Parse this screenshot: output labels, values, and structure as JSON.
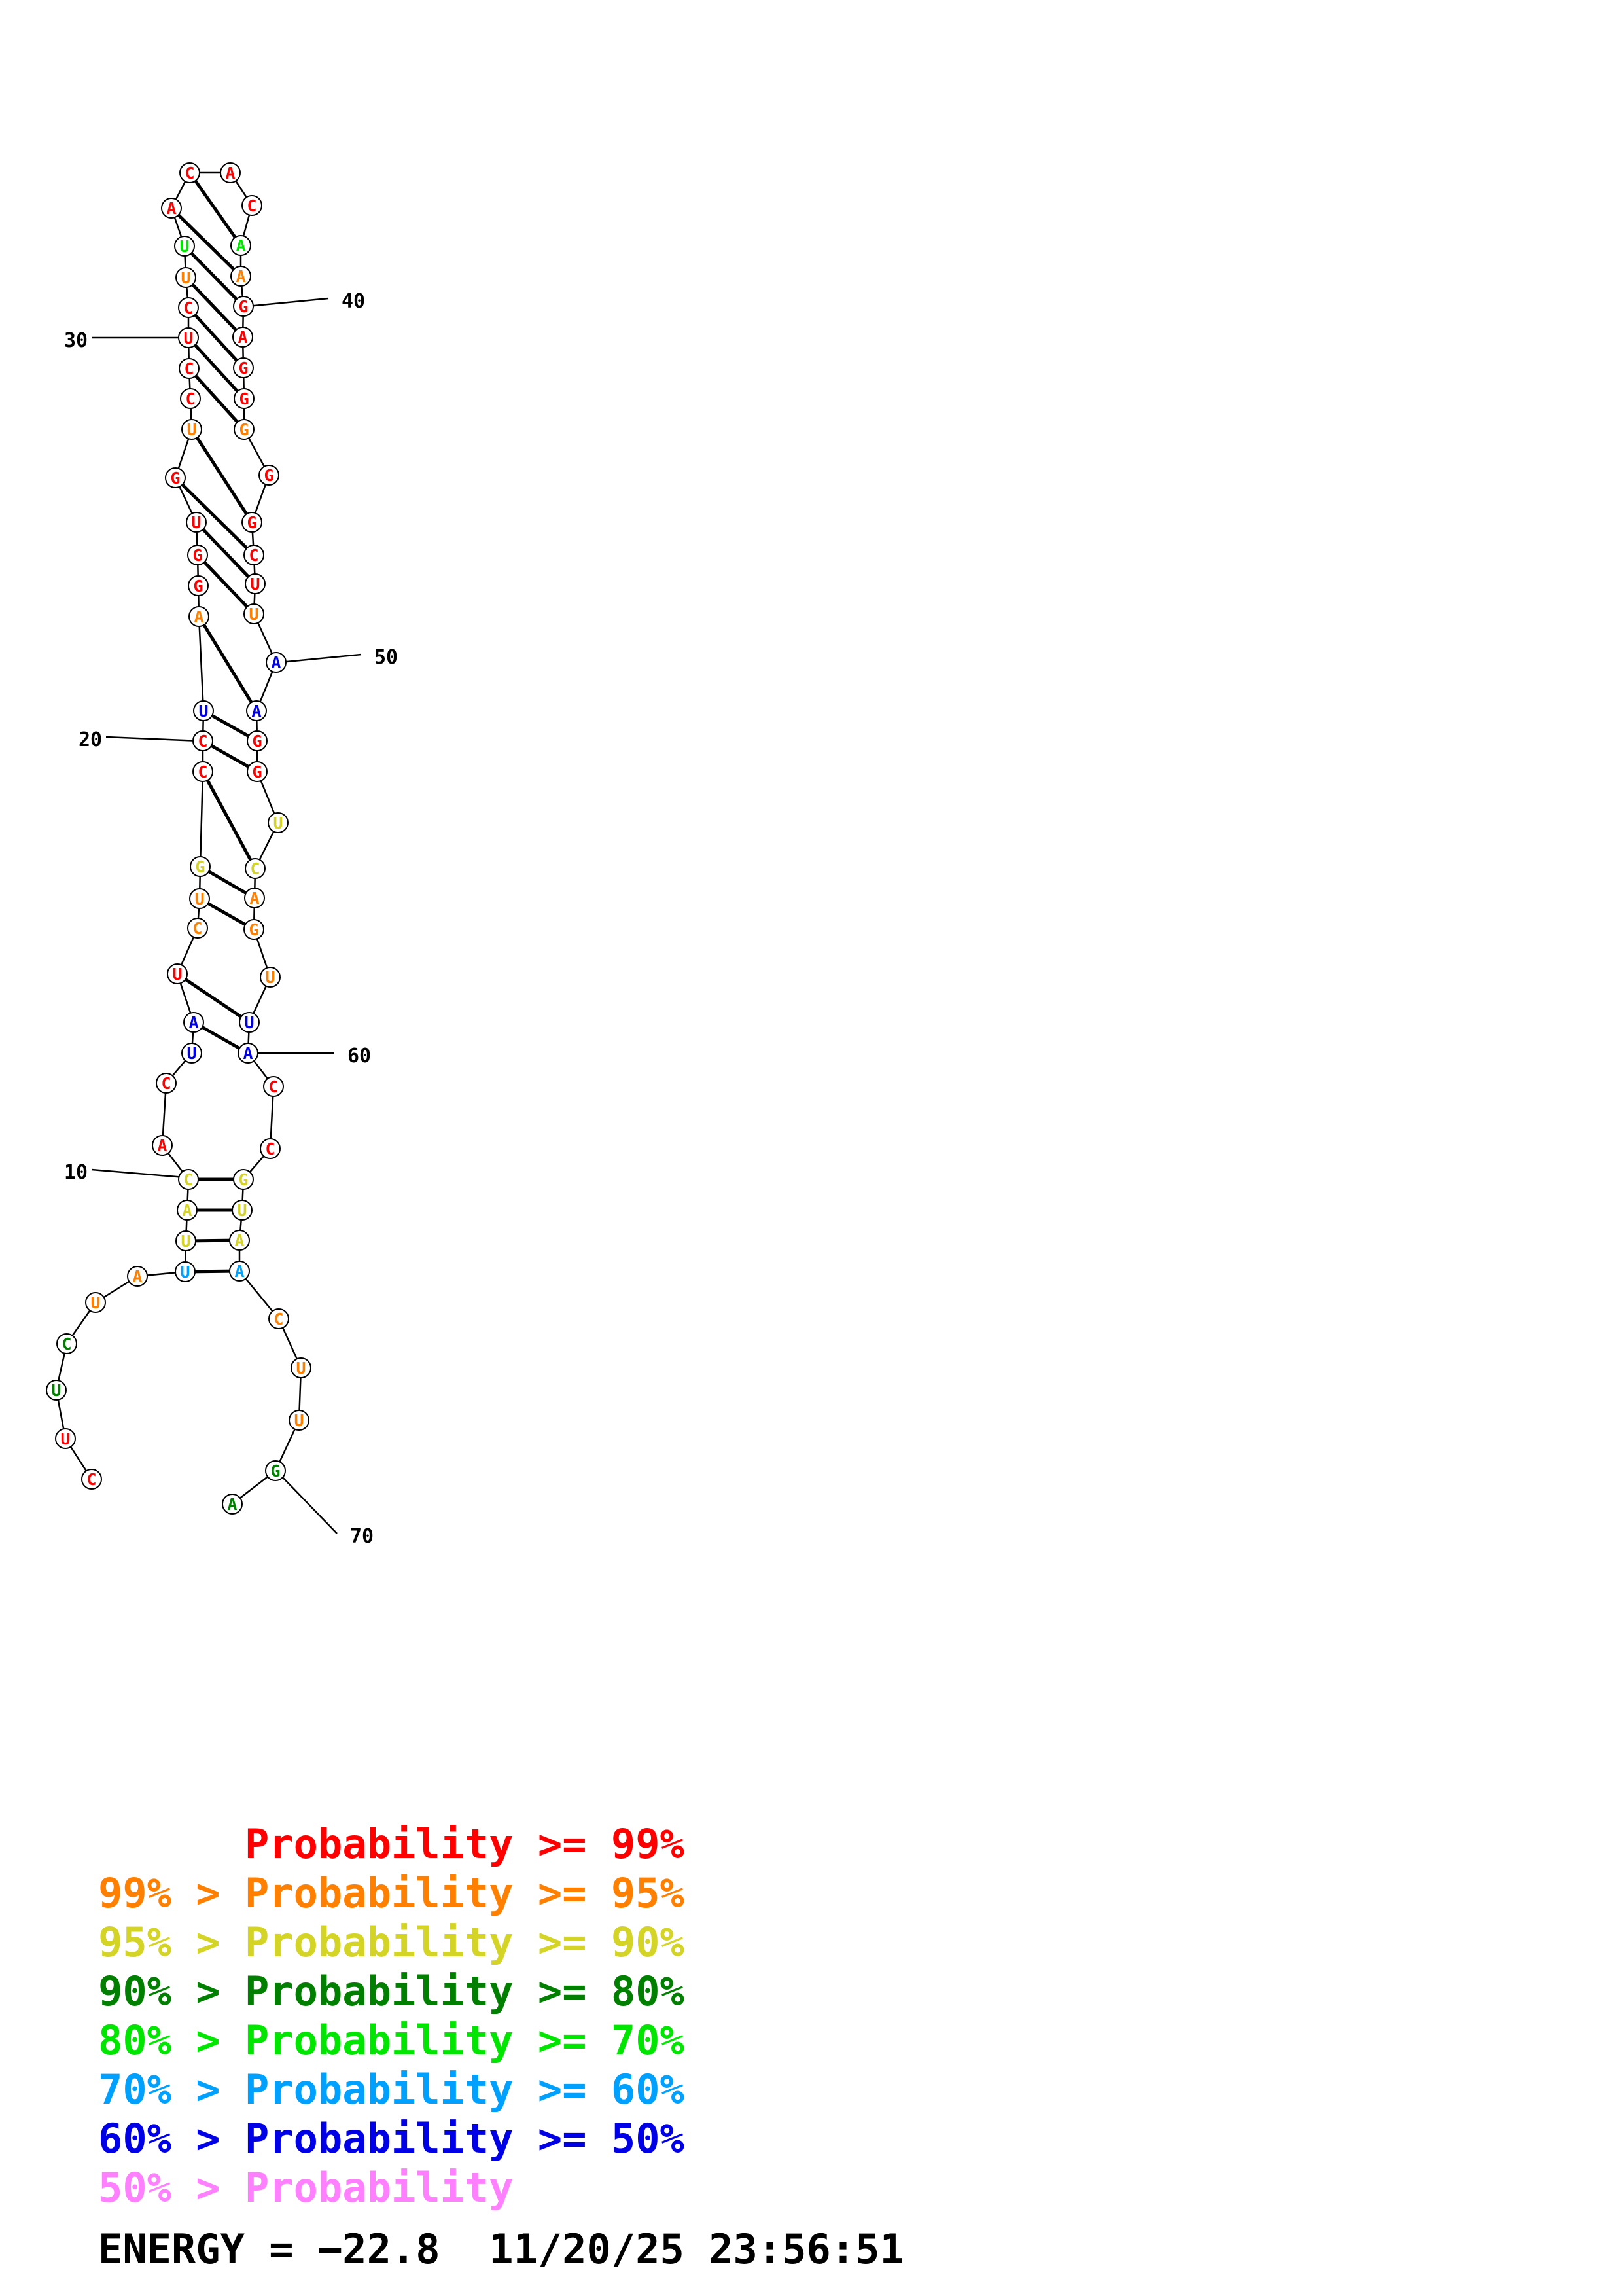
{
  "colors": {
    "p99": "#ff0000",
    "p95": "#ff8000",
    "p90": "#d4d426",
    "p80": "#007f00",
    "p70": "#00e600",
    "p60": "#00a0ff",
    "p50": "#0000e6",
    "plow": "#ff80ff"
  },
  "nucleotides": [
    {
      "b": "C",
      "c": "p99"
    },
    {
      "b": "U",
      "c": "p99"
    },
    {
      "b": "U",
      "c": "p80"
    },
    {
      "b": "C",
      "c": "p80"
    },
    {
      "b": "U",
      "c": "p95"
    },
    {
      "b": "A",
      "c": "p95"
    },
    {
      "b": "U",
      "c": "p60"
    },
    {
      "b": "U",
      "c": "p90"
    },
    {
      "b": "A",
      "c": "p90"
    },
    {
      "b": "C",
      "c": "p90"
    },
    {
      "b": "A",
      "c": "p99"
    },
    {
      "b": "C",
      "c": "p99"
    },
    {
      "b": "U",
      "c": "p50"
    },
    {
      "b": "A",
      "c": "p50"
    },
    {
      "b": "U",
      "c": "p99"
    },
    {
      "b": "C",
      "c": "p95"
    },
    {
      "b": "U",
      "c": "p95"
    },
    {
      "b": "G",
      "c": "p90"
    },
    {
      "b": "C",
      "c": "p99"
    },
    {
      "b": "C",
      "c": "p99"
    },
    {
      "b": "U",
      "c": "p50"
    },
    {
      "b": "A",
      "c": "p95"
    },
    {
      "b": "G",
      "c": "p99"
    },
    {
      "b": "G",
      "c": "p99"
    },
    {
      "b": "U",
      "c": "p99"
    },
    {
      "b": "G",
      "c": "p99"
    },
    {
      "b": "U",
      "c": "p95"
    },
    {
      "b": "C",
      "c": "p99"
    },
    {
      "b": "C",
      "c": "p99"
    },
    {
      "b": "U",
      "c": "p99"
    },
    {
      "b": "C",
      "c": "p99"
    },
    {
      "b": "U",
      "c": "p95"
    },
    {
      "b": "U",
      "c": "p70"
    },
    {
      "b": "A",
      "c": "p99"
    },
    {
      "b": "C",
      "c": "p99"
    },
    {
      "b": "A",
      "c": "p99"
    },
    {
      "b": "C",
      "c": "p99"
    },
    {
      "b": "A",
      "c": "p70"
    },
    {
      "b": "A",
      "c": "p95"
    },
    {
      "b": "G",
      "c": "p99"
    },
    {
      "b": "A",
      "c": "p99"
    },
    {
      "b": "G",
      "c": "p99"
    },
    {
      "b": "G",
      "c": "p99"
    },
    {
      "b": "G",
      "c": "p95"
    },
    {
      "b": "G",
      "c": "p99"
    },
    {
      "b": "G",
      "c": "p99"
    },
    {
      "b": "C",
      "c": "p99"
    },
    {
      "b": "U",
      "c": "p99"
    },
    {
      "b": "U",
      "c": "p95"
    },
    {
      "b": "A",
      "c": "p50"
    },
    {
      "b": "A",
      "c": "p50"
    },
    {
      "b": "G",
      "c": "p99"
    },
    {
      "b": "G",
      "c": "p99"
    },
    {
      "b": "U",
      "c": "p90"
    },
    {
      "b": "C",
      "c": "p90"
    },
    {
      "b": "A",
      "c": "p95"
    },
    {
      "b": "G",
      "c": "p95"
    },
    {
      "b": "U",
      "c": "p95"
    },
    {
      "b": "U",
      "c": "p50"
    },
    {
      "b": "A",
      "c": "p50"
    },
    {
      "b": "C",
      "c": "p99"
    },
    {
      "b": "C",
      "c": "p99"
    },
    {
      "b": "G",
      "c": "p90"
    },
    {
      "b": "U",
      "c": "p90"
    },
    {
      "b": "A",
      "c": "p90"
    },
    {
      "b": "A",
      "c": "p60"
    },
    {
      "b": "C",
      "c": "p95"
    },
    {
      "b": "U",
      "c": "p95"
    },
    {
      "b": "U",
      "c": "p95"
    },
    {
      "b": "G",
      "c": "p80"
    },
    {
      "b": "A",
      "c": "p80"
    }
  ],
  "pairs": [
    [
      7,
      66
    ],
    [
      8,
      65
    ],
    [
      9,
      64
    ],
    [
      10,
      63
    ],
    [
      14,
      60
    ],
    [
      15,
      59
    ],
    [
      17,
      57
    ],
    [
      18,
      56
    ],
    [
      19,
      55
    ],
    [
      20,
      53
    ],
    [
      21,
      52
    ],
    [
      22,
      51
    ],
    [
      24,
      49
    ],
    [
      25,
      48
    ],
    [
      26,
      47
    ],
    [
      27,
      46
    ],
    [
      29,
      44
    ],
    [
      30,
      43
    ],
    [
      31,
      42
    ],
    [
      32,
      41
    ],
    [
      33,
      40
    ],
    [
      34,
      39
    ],
    [
      35,
      38
    ]
  ],
  "position_labels": [
    {
      "text": "10",
      "n": 10
    },
    {
      "text": "20",
      "n": 20
    },
    {
      "text": "30",
      "n": 30
    },
    {
      "text": "40",
      "n": 40
    },
    {
      "text": "50",
      "n": 50
    },
    {
      "text": "60",
      "n": 60
    },
    {
      "text": "70",
      "n": 70
    }
  ],
  "legend": [
    {
      "prefix": "    ",
      "label": "Probability >= 99%",
      "color": "p99"
    },
    {
      "prefix": "99% > ",
      "label": "Probability >= 95%",
      "color": "p95"
    },
    {
      "prefix": "95% > ",
      "label": "Probability >= 90%",
      "color": "p90"
    },
    {
      "prefix": "90% > ",
      "label": "Probability >= 80%",
      "color": "p80"
    },
    {
      "prefix": "80% > ",
      "label": "Probability >= 70%",
      "color": "p70"
    },
    {
      "prefix": "70% > ",
      "label": "Probability >= 60%",
      "color": "p60"
    },
    {
      "prefix": "60% > ",
      "label": "Probability >= 50%",
      "color": "p50"
    },
    {
      "prefix": "50% > ",
      "label": "Probability",
      "color": "plow"
    }
  ],
  "footer": {
    "energy": "ENERGY = −22.8",
    "timestamp": "11/20/25 23:56:51"
  }
}
